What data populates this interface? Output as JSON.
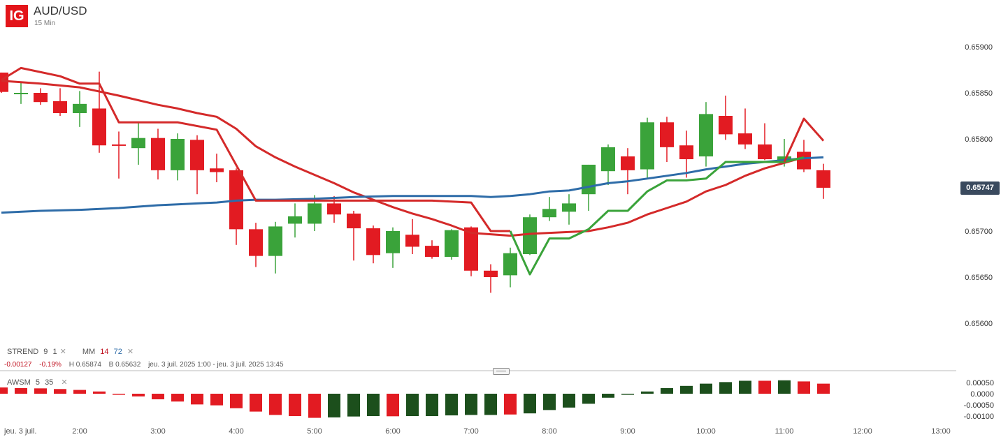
{
  "header": {
    "logo": "IG",
    "title": "AUD/USD",
    "subtitle": "15 Min"
  },
  "legend": {
    "strend_label": "STREND",
    "strend_p1": "9",
    "strend_p2": "1",
    "mm_label": "MM",
    "mm_p1": "14",
    "mm_p2": "72",
    "close_glyph": "✕"
  },
  "info": {
    "change": "-0.00127",
    "change_pct": "-0.19%",
    "high": "H 0.65874",
    "low": "B 0.65632",
    "range": "jeu. 3 juil. 2025 1:00 - jeu. 3 juil. 2025 13:45"
  },
  "awsm_legend": {
    "label": "AWSM",
    "p1": "5",
    "p2": "35",
    "close_glyph": "✕"
  },
  "price_badge": "0.65747",
  "colors": {
    "up": "#3aa33a",
    "down": "#e21b22",
    "mm_fast": "#d42a2a",
    "mm_slow": "#2e6ca8",
    "strend_up": "#3aa33a",
    "strend_down": "#d42a2a",
    "osc_up": "#1c4f1c",
    "osc_down": "#e21b22"
  },
  "chart_data": [
    {
      "type": "candlestick",
      "title": "AUD/USD",
      "interval": "15 Min",
      "ylim": [
        0.65575,
        0.65925
      ],
      "y_ticks": [
        "0.65900",
        "0.65850",
        "0.65800",
        "0.65700",
        "0.65650",
        "0.65600"
      ],
      "x_ticks": [
        {
          "label": "jeu. 3 juil.",
          "t": 1.0
        },
        {
          "label": "2:00",
          "t": 2.0
        },
        {
          "label": "3:00",
          "t": 3.0
        },
        {
          "label": "4:00",
          "t": 4.0
        },
        {
          "label": "5:00",
          "t": 5.0
        },
        {
          "label": "6:00",
          "t": 6.0
        },
        {
          "label": "7:00",
          "t": 7.0
        },
        {
          "label": "8:00",
          "t": 8.0
        },
        {
          "label": "9:00",
          "t": 9.0
        },
        {
          "label": "10:00",
          "t": 10.0
        },
        {
          "label": "11:00",
          "t": 11.0
        },
        {
          "label": "12:00",
          "t": 12.0
        },
        {
          "label": "13:00",
          "t": 13.0
        }
      ],
      "candles": [
        {
          "t": 1.0,
          "o": 0.65872,
          "h": 0.65872,
          "l": 0.6585,
          "c": 0.65851
        },
        {
          "t": 1.25,
          "o": 0.6585,
          "h": 0.65862,
          "l": 0.65838,
          "c": 0.6585
        },
        {
          "t": 1.5,
          "o": 0.6585,
          "h": 0.65855,
          "l": 0.65837,
          "c": 0.6584
        },
        {
          "t": 1.75,
          "o": 0.65841,
          "h": 0.65855,
          "l": 0.65825,
          "c": 0.65828
        },
        {
          "t": 2.0,
          "o": 0.65828,
          "h": 0.65852,
          "l": 0.65813,
          "c": 0.65838
        },
        {
          "t": 2.25,
          "o": 0.65833,
          "h": 0.65873,
          "l": 0.65785,
          "c": 0.65793
        },
        {
          "t": 2.5,
          "o": 0.65794,
          "h": 0.65808,
          "l": 0.65757,
          "c": 0.65793
        },
        {
          "t": 2.75,
          "o": 0.6579,
          "h": 0.65818,
          "l": 0.65772,
          "c": 0.65801
        },
        {
          "t": 3.0,
          "o": 0.65801,
          "h": 0.65811,
          "l": 0.65756,
          "c": 0.65766
        },
        {
          "t": 3.25,
          "o": 0.65766,
          "h": 0.65806,
          "l": 0.65755,
          "c": 0.658
        },
        {
          "t": 3.5,
          "o": 0.65799,
          "h": 0.65804,
          "l": 0.6574,
          "c": 0.65766
        },
        {
          "t": 3.75,
          "o": 0.65768,
          "h": 0.65784,
          "l": 0.65753,
          "c": 0.65764
        },
        {
          "t": 4.0,
          "o": 0.65766,
          "h": 0.65768,
          "l": 0.65685,
          "c": 0.65702
        },
        {
          "t": 4.25,
          "o": 0.65702,
          "h": 0.65709,
          "l": 0.65661,
          "c": 0.65673
        },
        {
          "t": 4.5,
          "o": 0.65673,
          "h": 0.6571,
          "l": 0.65654,
          "c": 0.65705
        },
        {
          "t": 4.75,
          "o": 0.65708,
          "h": 0.6573,
          "l": 0.65693,
          "c": 0.65716
        },
        {
          "t": 5.0,
          "o": 0.65708,
          "h": 0.65739,
          "l": 0.657,
          "c": 0.6573
        },
        {
          "t": 5.25,
          "o": 0.6573,
          "h": 0.65738,
          "l": 0.65709,
          "c": 0.65718
        },
        {
          "t": 5.5,
          "o": 0.65719,
          "h": 0.65722,
          "l": 0.65668,
          "c": 0.65703
        },
        {
          "t": 5.75,
          "o": 0.65703,
          "h": 0.65706,
          "l": 0.65665,
          "c": 0.65674
        },
        {
          "t": 6.0,
          "o": 0.65676,
          "h": 0.65704,
          "l": 0.6566,
          "c": 0.657
        },
        {
          "t": 6.25,
          "o": 0.65696,
          "h": 0.65713,
          "l": 0.65675,
          "c": 0.65683
        },
        {
          "t": 6.5,
          "o": 0.65684,
          "h": 0.6569,
          "l": 0.6567,
          "c": 0.65672
        },
        {
          "t": 6.75,
          "o": 0.65672,
          "h": 0.65702,
          "l": 0.65669,
          "c": 0.65701
        },
        {
          "t": 7.0,
          "o": 0.65704,
          "h": 0.65705,
          "l": 0.65651,
          "c": 0.65657
        },
        {
          "t": 7.25,
          "o": 0.65657,
          "h": 0.65664,
          "l": 0.65633,
          "c": 0.6565
        },
        {
          "t": 7.5,
          "o": 0.65652,
          "h": 0.65682,
          "l": 0.65639,
          "c": 0.65676
        },
        {
          "t": 7.75,
          "o": 0.65675,
          "h": 0.65718,
          "l": 0.65674,
          "c": 0.65715
        },
        {
          "t": 8.0,
          "o": 0.65715,
          "h": 0.65737,
          "l": 0.65711,
          "c": 0.65724
        },
        {
          "t": 8.25,
          "o": 0.65721,
          "h": 0.6574,
          "l": 0.65707,
          "c": 0.6573
        },
        {
          "t": 8.5,
          "o": 0.6574,
          "h": 0.65772,
          "l": 0.65722,
          "c": 0.65772
        },
        {
          "t": 8.75,
          "o": 0.65765,
          "h": 0.65794,
          "l": 0.6575,
          "c": 0.65791
        },
        {
          "t": 9.0,
          "o": 0.65781,
          "h": 0.6579,
          "l": 0.6574,
          "c": 0.65766
        },
        {
          "t": 9.25,
          "o": 0.65767,
          "h": 0.65823,
          "l": 0.65757,
          "c": 0.65818
        },
        {
          "t": 9.5,
          "o": 0.65818,
          "h": 0.65824,
          "l": 0.65775,
          "c": 0.65791
        },
        {
          "t": 9.75,
          "o": 0.65793,
          "h": 0.65809,
          "l": 0.65758,
          "c": 0.65778
        },
        {
          "t": 10.0,
          "o": 0.65781,
          "h": 0.6584,
          "l": 0.6577,
          "c": 0.65827
        },
        {
          "t": 10.25,
          "o": 0.65825,
          "h": 0.65847,
          "l": 0.65799,
          "c": 0.65805
        },
        {
          "t": 10.5,
          "o": 0.65806,
          "h": 0.65833,
          "l": 0.65789,
          "c": 0.65794
        },
        {
          "t": 10.75,
          "o": 0.65794,
          "h": 0.65817,
          "l": 0.65777,
          "c": 0.65778
        },
        {
          "t": 11.0,
          "o": 0.65775,
          "h": 0.658,
          "l": 0.6577,
          "c": 0.65781
        },
        {
          "t": 11.25,
          "o": 0.65786,
          "h": 0.65799,
          "l": 0.65764,
          "c": 0.65767
        },
        {
          "t": 11.5,
          "o": 0.65766,
          "h": 0.65773,
          "l": 0.65735,
          "c": 0.65747
        }
      ],
      "series": [
        {
          "name": "MM 14",
          "color": "#d42a2a",
          "points": [
            [
              1.0,
              0.65863
            ],
            [
              1.5,
              0.6586
            ],
            [
              2.0,
              0.65856
            ],
            [
              2.5,
              0.65847
            ],
            [
              3.0,
              0.65837
            ],
            [
              3.25,
              0.65833
            ],
            [
              3.5,
              0.65828
            ],
            [
              3.75,
              0.65824
            ],
            [
              4.0,
              0.65811
            ],
            [
              4.25,
              0.65792
            ],
            [
              4.5,
              0.6578
            ],
            [
              4.75,
              0.6577
            ],
            [
              5.0,
              0.65761
            ],
            [
              5.25,
              0.65752
            ],
            [
              5.5,
              0.65742
            ],
            [
              5.75,
              0.65734
            ],
            [
              6.0,
              0.65726
            ],
            [
              6.25,
              0.65719
            ],
            [
              6.5,
              0.65713
            ],
            [
              6.75,
              0.65706
            ],
            [
              7.0,
              0.65698
            ],
            [
              7.5,
              0.65695
            ],
            [
              7.75,
              0.65697
            ],
            [
              8.0,
              0.65698
            ],
            [
              8.5,
              0.657
            ],
            [
              8.75,
              0.65704
            ],
            [
              9.0,
              0.65709
            ],
            [
              9.25,
              0.65718
            ],
            [
              9.5,
              0.65725
            ],
            [
              9.75,
              0.65732
            ],
            [
              10.0,
              0.65743
            ],
            [
              10.25,
              0.6575
            ],
            [
              10.5,
              0.6576
            ],
            [
              10.75,
              0.65768
            ],
            [
              11.0,
              0.65774
            ],
            [
              11.25,
              0.6578
            ]
          ]
        },
        {
          "name": "MM 72",
          "color": "#2e6ca8",
          "points": [
            [
              1.0,
              0.6572
            ],
            [
              1.5,
              0.65722
            ],
            [
              2.0,
              0.65723
            ],
            [
              2.5,
              0.65725
            ],
            [
              3.0,
              0.65728
            ],
            [
              3.25,
              0.65729
            ],
            [
              3.5,
              0.6573
            ],
            [
              3.75,
              0.65731
            ],
            [
              4.0,
              0.65733
            ],
            [
              4.25,
              0.65734
            ],
            [
              4.5,
              0.65734
            ],
            [
              5.0,
              0.65735
            ],
            [
              5.5,
              0.65737
            ],
            [
              6.0,
              0.65738
            ],
            [
              6.5,
              0.65738
            ],
            [
              6.75,
              0.65738
            ],
            [
              7.0,
              0.65738
            ],
            [
              7.25,
              0.65737
            ],
            [
              7.5,
              0.65738
            ],
            [
              7.75,
              0.6574
            ],
            [
              8.0,
              0.65743
            ],
            [
              8.25,
              0.65744
            ],
            [
              8.5,
              0.65748
            ],
            [
              8.75,
              0.65752
            ],
            [
              9.0,
              0.65754
            ],
            [
              9.25,
              0.65757
            ],
            [
              9.5,
              0.6576
            ],
            [
              9.75,
              0.65763
            ],
            [
              10.0,
              0.65767
            ],
            [
              10.25,
              0.6577
            ],
            [
              10.5,
              0.65773
            ],
            [
              10.75,
              0.65775
            ],
            [
              11.0,
              0.65777
            ],
            [
              11.25,
              0.65779
            ],
            [
              11.5,
              0.6578
            ]
          ]
        },
        {
          "name": "STREND 9 1",
          "color": "#d42a2a",
          "points": [
            [
              1.0,
              0.65864
            ],
            [
              1.25,
              0.65877
            ],
            [
              1.75,
              0.65868
            ],
            [
              2.0,
              0.6586
            ],
            [
              2.25,
              0.6586
            ],
            [
              2.5,
              0.65818
            ],
            [
              3.25,
              0.65818
            ],
            [
              3.75,
              0.6581
            ],
            [
              4.25,
              0.65733
            ],
            [
              6.5,
              0.65733
            ],
            [
              6.75,
              0.65732
            ],
            [
              7.0,
              0.65731
            ],
            [
              7.25,
              0.657
            ],
            [
              7.5,
              0.657
            ]
          ]
        },
        {
          "name": "STREND 9 1 up",
          "color": "#3aa33a",
          "points": [
            [
              7.5,
              0.657
            ],
            [
              7.75,
              0.65653
            ],
            [
              8.0,
              0.65692
            ],
            [
              8.25,
              0.65692
            ],
            [
              8.5,
              0.65702
            ],
            [
              8.75,
              0.65722
            ],
            [
              9.0,
              0.65722
            ],
            [
              9.25,
              0.65743
            ],
            [
              9.5,
              0.65755
            ],
            [
              9.75,
              0.65755
            ],
            [
              10.0,
              0.65757
            ],
            [
              10.25,
              0.65775
            ],
            [
              10.5,
              0.65775
            ],
            [
              10.75,
              0.65775
            ],
            [
              11.0,
              0.65775
            ],
            [
              11.25,
              0.6578
            ]
          ]
        },
        {
          "name": "STREND 9 1 down",
          "color": "#d42a2a",
          "points": [
            [
              11.0,
              0.65775
            ],
            [
              11.25,
              0.65822
            ],
            [
              11.5,
              0.65798
            ]
          ]
        }
      ]
    },
    {
      "type": "bar",
      "title": "AWSM 5 35",
      "ylim": [
        -0.00115,
        0.00062
      ],
      "y_ticks": [
        "0.00050",
        "0.0000",
        "-0.00050",
        "-0.00100"
      ],
      "bars": [
        {
          "t": 1.0,
          "v": 0.00028,
          "dir": "down"
        },
        {
          "t": 1.25,
          "v": 0.00025,
          "dir": "down"
        },
        {
          "t": 1.5,
          "v": 0.00024,
          "dir": "down"
        },
        {
          "t": 1.75,
          "v": 0.00021,
          "dir": "down"
        },
        {
          "t": 2.0,
          "v": 0.00017,
          "dir": "down"
        },
        {
          "t": 2.25,
          "v": 0.0001,
          "dir": "down"
        },
        {
          "t": 2.5,
          "v": -2e-05,
          "dir": "down"
        },
        {
          "t": 2.75,
          "v": -0.00012,
          "dir": "down"
        },
        {
          "t": 3.0,
          "v": -0.00025,
          "dir": "down"
        },
        {
          "t": 3.25,
          "v": -0.00035,
          "dir": "down"
        },
        {
          "t": 3.5,
          "v": -0.00048,
          "dir": "down"
        },
        {
          "t": 3.75,
          "v": -0.00052,
          "dir": "down"
        },
        {
          "t": 4.0,
          "v": -0.00065,
          "dir": "down"
        },
        {
          "t": 4.25,
          "v": -0.0008,
          "dir": "down"
        },
        {
          "t": 4.5,
          "v": -0.00095,
          "dir": "down"
        },
        {
          "t": 4.75,
          "v": -0.001,
          "dir": "down"
        },
        {
          "t": 5.0,
          "v": -0.00108,
          "dir": "down"
        },
        {
          "t": 5.25,
          "v": -0.00106,
          "dir": "up"
        },
        {
          "t": 5.5,
          "v": -0.00102,
          "dir": "up"
        },
        {
          "t": 5.75,
          "v": -0.001,
          "dir": "up"
        },
        {
          "t": 6.0,
          "v": -0.00101,
          "dir": "down"
        },
        {
          "t": 6.25,
          "v": -0.001,
          "dir": "up"
        },
        {
          "t": 6.5,
          "v": -0.001,
          "dir": "up"
        },
        {
          "t": 6.75,
          "v": -0.00097,
          "dir": "up"
        },
        {
          "t": 7.0,
          "v": -0.00095,
          "dir": "up"
        },
        {
          "t": 7.25,
          "v": -0.00095,
          "dir": "up"
        },
        {
          "t": 7.5,
          "v": -0.00093,
          "dir": "down"
        },
        {
          "t": 7.75,
          "v": -0.00088,
          "dir": "up"
        },
        {
          "t": 8.0,
          "v": -0.00073,
          "dir": "up"
        },
        {
          "t": 8.25,
          "v": -0.00062,
          "dir": "up"
        },
        {
          "t": 8.5,
          "v": -0.00045,
          "dir": "up"
        },
        {
          "t": 8.75,
          "v": -0.00018,
          "dir": "up"
        },
        {
          "t": 9.0,
          "v": -2e-05,
          "dir": "up"
        },
        {
          "t": 9.25,
          "v": 0.0001,
          "dir": "up"
        },
        {
          "t": 9.5,
          "v": 0.00025,
          "dir": "up"
        },
        {
          "t": 9.75,
          "v": 0.00035,
          "dir": "up"
        },
        {
          "t": 10.0,
          "v": 0.00045,
          "dir": "up"
        },
        {
          "t": 10.25,
          "v": 0.00052,
          "dir": "up"
        },
        {
          "t": 10.5,
          "v": 0.00058,
          "dir": "up"
        },
        {
          "t": 10.75,
          "v": 0.00058,
          "dir": "down"
        },
        {
          "t": 11.0,
          "v": 0.0006,
          "dir": "up"
        },
        {
          "t": 11.25,
          "v": 0.00055,
          "dir": "down"
        },
        {
          "t": 11.5,
          "v": 0.00045,
          "dir": "down"
        }
      ]
    }
  ]
}
